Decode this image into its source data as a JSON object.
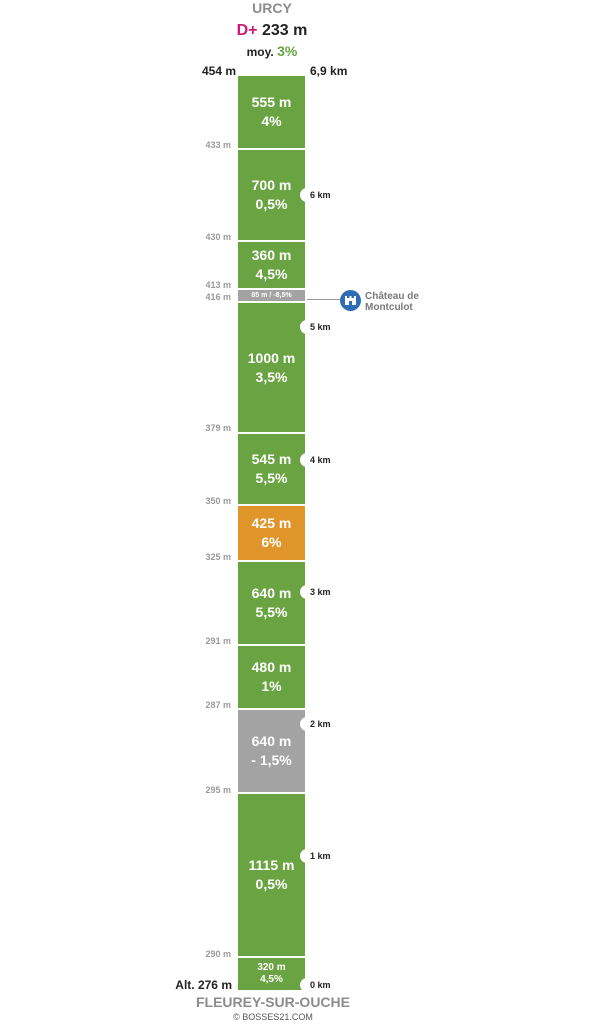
{
  "header": {
    "summit": "URCY",
    "gain_prefix": "D+",
    "gain_value": "233 m",
    "avg_prefix": "moy.",
    "avg_value": "3%",
    "top_altitude": "454 m",
    "total_distance": "6,9 km"
  },
  "footer": {
    "start_altitude": "Alt. 276 m",
    "start_town": "FLEUREY-SUR-OUCHE",
    "credit": "© BOSSES21.COM"
  },
  "colors": {
    "green": "#6aa442",
    "orange": "#e0952a",
    "grey": "#a3a3a3",
    "gain": "#cc1a7a",
    "poi": "#2e6db5"
  },
  "segments": [
    {
      "length": "555 m",
      "grade": "4%",
      "color": "green"
    },
    {
      "length": "700 m",
      "grade": "0,5%",
      "color": "green"
    },
    {
      "length": "360 m",
      "grade": "4,5%",
      "color": "green"
    },
    {
      "length": "85 m",
      "grade": "-8,5%",
      "color": "grey"
    },
    {
      "length": "1000 m",
      "grade": "3,5%",
      "color": "green"
    },
    {
      "length": "545 m",
      "grade": "5,5%",
      "color": "green"
    },
    {
      "length": "425 m",
      "grade": "6%",
      "color": "orange"
    },
    {
      "length": "640 m",
      "grade": "5,5%",
      "color": "green"
    },
    {
      "length": "480 m",
      "grade": "1%",
      "color": "green"
    },
    {
      "length": "640 m",
      "grade": "- 1,5%",
      "color": "grey"
    },
    {
      "length": "1115 m",
      "grade": "0,5%",
      "color": "green"
    },
    {
      "length": "320 m",
      "grade": "4,5%",
      "color": "green"
    }
  ],
  "altitudes": [
    "433 m",
    "430 m",
    "413 m",
    "416 m",
    "379 m",
    "350 m",
    "325 m",
    "291 m",
    "287 m",
    "295 m",
    "290 m"
  ],
  "km_markers": [
    "6 km",
    "5 km",
    "4 km",
    "3 km",
    "2 km",
    "1 km",
    "0 km"
  ],
  "poi": {
    "label_line1": "Château de",
    "label_line2": "Montculot",
    "icon": "castle-icon"
  }
}
